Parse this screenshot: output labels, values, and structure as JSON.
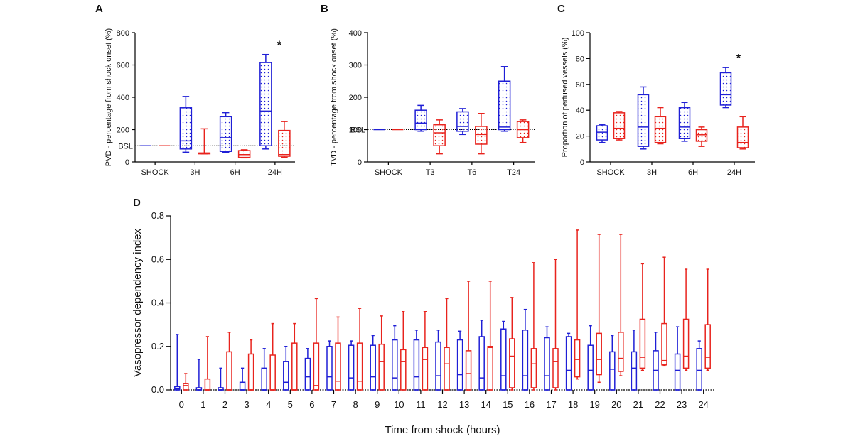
{
  "colors": {
    "group1": "#1f1fd6",
    "group2": "#e8231d",
    "axis": "#000000"
  },
  "chart_data": [
    {
      "panel": "A",
      "type": "box",
      "ylabel": "PVD - percentage from shock onset (%)",
      "categories": [
        "SHOCK",
        "3H",
        "6H",
        "24H"
      ],
      "ylim": [
        0,
        800
      ],
      "yticks": [
        "0",
        "200",
        "400",
        "600",
        "800"
      ],
      "baseline": {
        "value": 100,
        "label": "BSL"
      },
      "significance": [
        {
          "category": "24H",
          "label": "*"
        }
      ],
      "series": [
        {
          "color": "#1f1fd6",
          "pattern": "dots",
          "boxes": [
            {
              "min": 100,
              "q1": 100,
              "median": 100,
              "q3": 100,
              "max": 100
            },
            {
              "min": 60,
              "q1": 80,
              "median": 130,
              "q3": 335,
              "max": 405
            },
            {
              "min": 60,
              "q1": 65,
              "median": 150,
              "q3": 280,
              "max": 305
            },
            {
              "min": 80,
              "q1": 100,
              "median": 315,
              "q3": 615,
              "max": 665
            }
          ]
        },
        {
          "color": "#e8231d",
          "pattern": "dots",
          "boxes": [
            {
              "min": 100,
              "q1": 100,
              "median": 100,
              "q3": 100,
              "max": 100
            },
            {
              "min": 50,
              "q1": 50,
              "median": 55,
              "q3": 55,
              "max": 205
            },
            {
              "min": 25,
              "q1": 28,
              "median": 45,
              "q3": 70,
              "max": 75
            },
            {
              "min": 28,
              "q1": 35,
              "median": 45,
              "q3": 195,
              "max": 250
            }
          ]
        }
      ]
    },
    {
      "panel": "B",
      "type": "box",
      "ylabel": "TVD - percentage from shock onset (%)",
      "categories": [
        "SHOCK",
        "T3",
        "T6",
        "T24"
      ],
      "ylim": [
        0,
        400
      ],
      "yticks": [
        "0",
        "100",
        "200",
        "300",
        "400"
      ],
      "baseline": {
        "value": 100,
        "label": "BSL"
      },
      "significance": [],
      "series": [
        {
          "color": "#1f1fd6",
          "pattern": "dots",
          "boxes": [
            {
              "min": 100,
              "q1": 100,
              "median": 100,
              "q3": 100,
              "max": 100
            },
            {
              "min": 95,
              "q1": 100,
              "median": 120,
              "q3": 160,
              "max": 175
            },
            {
              "min": 85,
              "q1": 95,
              "median": 110,
              "q3": 155,
              "max": 165
            },
            {
              "min": 95,
              "q1": 100,
              "median": 108,
              "q3": 250,
              "max": 295
            }
          ]
        },
        {
          "color": "#e8231d",
          "pattern": "dots",
          "boxes": [
            {
              "min": 100,
              "q1": 100,
              "median": 100,
              "q3": 100,
              "max": 100
            },
            {
              "min": 25,
              "q1": 50,
              "median": 90,
              "q3": 115,
              "max": 130
            },
            {
              "min": 25,
              "q1": 55,
              "median": 85,
              "q3": 110,
              "max": 150
            },
            {
              "min": 60,
              "q1": 75,
              "median": 100,
              "q3": 125,
              "max": 130
            }
          ]
        }
      ]
    },
    {
      "panel": "C",
      "type": "box",
      "ylabel": "Proportion of perfused vessels (%)",
      "categories": [
        "SHOCK",
        "3H",
        "6H",
        "24H"
      ],
      "ylim": [
        0,
        100
      ],
      "yticks": [
        "0",
        "20",
        "40",
        "60",
        "80",
        "100"
      ],
      "significance": [
        {
          "category": "24H",
          "label": "*"
        }
      ],
      "series": [
        {
          "color": "#1f1fd6",
          "pattern": "dots",
          "boxes": [
            {
              "min": 15,
              "q1": 17,
              "median": 23,
              "q3": 28,
              "max": 29
            },
            {
              "min": 10,
              "q1": 12,
              "median": 27,
              "q3": 52,
              "max": 58
            },
            {
              "min": 16,
              "q1": 18,
              "median": 27,
              "q3": 42,
              "max": 46
            },
            {
              "min": 42,
              "q1": 44,
              "median": 52,
              "q3": 69,
              "max": 73
            }
          ]
        },
        {
          "color": "#e8231d",
          "pattern": "dots",
          "boxes": [
            {
              "min": 17,
              "q1": 18,
              "median": 26,
              "q3": 38,
              "max": 39
            },
            {
              "min": 14,
              "q1": 15,
              "median": 26,
              "q3": 35,
              "max": 42
            },
            {
              "min": 12,
              "q1": 16,
              "median": 21,
              "q3": 25,
              "max": 27
            },
            {
              "min": 10,
              "q1": 11,
              "median": 15,
              "q3": 27,
              "max": 35
            }
          ]
        }
      ]
    },
    {
      "panel": "D",
      "type": "box",
      "ylabel": "Vasopressor dependency index",
      "xlabel": "Time from shock (hours)",
      "categories": [
        "0",
        "1",
        "2",
        "3",
        "4",
        "5",
        "6",
        "7",
        "8",
        "9",
        "10",
        "11",
        "12",
        "13",
        "14",
        "15",
        "16",
        "17",
        "18",
        "19",
        "20",
        "21",
        "22",
        "23",
        "24"
      ],
      "ylim": [
        0,
        0.8
      ],
      "yticks": [
        "0.0",
        "0.2",
        "0.4",
        "0.6",
        "0.8"
      ],
      "significance": [],
      "series": [
        {
          "color": "#1f1fd6",
          "pattern": "none",
          "boxes": [
            {
              "min": 0,
              "q1": 0,
              "median": 0.005,
              "q3": 0.015,
              "max": 0.255
            },
            {
              "min": 0,
              "q1": 0,
              "median": 0,
              "q3": 0.01,
              "max": 0.14
            },
            {
              "min": 0,
              "q1": 0,
              "median": 0,
              "q3": 0.01,
              "max": 0.1
            },
            {
              "min": 0,
              "q1": 0,
              "median": 0,
              "q3": 0.035,
              "max": 0.1
            },
            {
              "min": 0,
              "q1": 0,
              "median": 0,
              "q3": 0.1,
              "max": 0.19
            },
            {
              "min": 0,
              "q1": 0,
              "median": 0.035,
              "q3": 0.13,
              "max": 0.2
            },
            {
              "min": 0,
              "q1": 0,
              "median": 0.06,
              "q3": 0.145,
              "max": 0.19
            },
            {
              "min": 0,
              "q1": 0,
              "median": 0.06,
              "q3": 0.2,
              "max": 0.225
            },
            {
              "min": 0,
              "q1": 0,
              "median": 0.055,
              "q3": 0.205,
              "max": 0.225
            },
            {
              "min": 0,
              "q1": 0,
              "median": 0.06,
              "q3": 0.205,
              "max": 0.25
            },
            {
              "min": 0,
              "q1": 0,
              "median": 0.055,
              "q3": 0.23,
              "max": 0.295
            },
            {
              "min": 0,
              "q1": 0,
              "median": 0.06,
              "q3": 0.23,
              "max": 0.275
            },
            {
              "min": 0,
              "q1": 0,
              "median": 0.065,
              "q3": 0.22,
              "max": 0.275
            },
            {
              "min": 0,
              "q1": 0,
              "median": 0.07,
              "q3": 0.23,
              "max": 0.27
            },
            {
              "min": 0,
              "q1": 0,
              "median": 0.055,
              "q3": 0.245,
              "max": 0.32
            },
            {
              "min": 0,
              "q1": 0,
              "median": 0.065,
              "q3": 0.28,
              "max": 0.315
            },
            {
              "min": 0,
              "q1": 0,
              "median": 0.065,
              "q3": 0.275,
              "max": 0.37
            },
            {
              "min": 0,
              "q1": 0,
              "median": 0.065,
              "q3": 0.24,
              "max": 0.29
            },
            {
              "min": 0,
              "q1": 0,
              "median": 0.09,
              "q3": 0.245,
              "max": 0.26
            },
            {
              "min": 0,
              "q1": 0,
              "median": 0.09,
              "q3": 0.205,
              "max": 0.295
            },
            {
              "min": 0,
              "q1": 0,
              "median": 0.095,
              "q3": 0.175,
              "max": 0.25
            },
            {
              "min": 0,
              "q1": 0,
              "median": 0.1,
              "q3": 0.175,
              "max": 0.275
            },
            {
              "min": 0,
              "q1": 0,
              "median": 0.09,
              "q3": 0.18,
              "max": 0.265
            },
            {
              "min": 0,
              "q1": 0,
              "median": 0.09,
              "q3": 0.165,
              "max": 0.29
            },
            {
              "min": 0,
              "q1": 0,
              "median": 0.09,
              "q3": 0.19,
              "max": 0.225
            }
          ]
        },
        {
          "color": "#e8231d",
          "pattern": "none",
          "boxes": [
            {
              "min": 0,
              "q1": 0,
              "median": 0.02,
              "q3": 0.03,
              "max": 0.075
            },
            {
              "min": 0,
              "q1": 0,
              "median": 0,
              "q3": 0.05,
              "max": 0.245
            },
            {
              "min": 0,
              "q1": 0,
              "median": 0,
              "q3": 0.175,
              "max": 0.265
            },
            {
              "min": 0,
              "q1": 0,
              "median": 0,
              "q3": 0.165,
              "max": 0.23
            },
            {
              "min": 0,
              "q1": 0,
              "median": 0,
              "q3": 0.16,
              "max": 0.305
            },
            {
              "min": 0,
              "q1": 0,
              "median": 0,
              "q3": 0.215,
              "max": 0.305
            },
            {
              "min": 0,
              "q1": 0,
              "median": 0.02,
              "q3": 0.215,
              "max": 0.42
            },
            {
              "min": 0,
              "q1": 0,
              "median": 0.04,
              "q3": 0.215,
              "max": 0.335
            },
            {
              "min": 0,
              "q1": 0,
              "median": 0.04,
              "q3": 0.215,
              "max": 0.375
            },
            {
              "min": 0,
              "q1": 0,
              "median": 0.13,
              "q3": 0.21,
              "max": 0.34
            },
            {
              "min": 0,
              "q1": 0,
              "median": 0.13,
              "q3": 0.185,
              "max": 0.36
            },
            {
              "min": 0,
              "q1": 0,
              "median": 0.14,
              "q3": 0.195,
              "max": 0.36
            },
            {
              "min": 0,
              "q1": 0,
              "median": 0.12,
              "q3": 0.195,
              "max": 0.42
            },
            {
              "min": 0,
              "q1": 0,
              "median": 0.075,
              "q3": 0.18,
              "max": 0.5
            },
            {
              "min": 0,
              "q1": 0,
              "median": 0.195,
              "q3": 0.2,
              "max": 0.5
            },
            {
              "min": 0,
              "q1": 0.01,
              "median": 0.155,
              "q3": 0.235,
              "max": 0.425
            },
            {
              "min": 0,
              "q1": 0.01,
              "median": 0.12,
              "q3": 0.19,
              "max": 0.585
            },
            {
              "min": 0,
              "q1": 0.01,
              "median": 0.13,
              "q3": 0.19,
              "max": 0.6
            },
            {
              "min": 0.05,
              "q1": 0.06,
              "median": 0.14,
              "q3": 0.23,
              "max": 0.735
            },
            {
              "min": 0.035,
              "q1": 0.07,
              "median": 0.14,
              "q3": 0.26,
              "max": 0.715
            },
            {
              "min": 0.065,
              "q1": 0.085,
              "median": 0.145,
              "q3": 0.265,
              "max": 0.715
            },
            {
              "min": 0.09,
              "q1": 0.1,
              "median": 0.15,
              "q3": 0.325,
              "max": 0.58
            },
            {
              "min": 0.11,
              "q1": 0.115,
              "median": 0.135,
              "q3": 0.305,
              "max": 0.61
            },
            {
              "min": 0.09,
              "q1": 0.1,
              "median": 0.155,
              "q3": 0.325,
              "max": 0.555
            },
            {
              "min": 0.09,
              "q1": 0.1,
              "median": 0.15,
              "q3": 0.3,
              "max": 0.555
            }
          ]
        }
      ]
    }
  ]
}
